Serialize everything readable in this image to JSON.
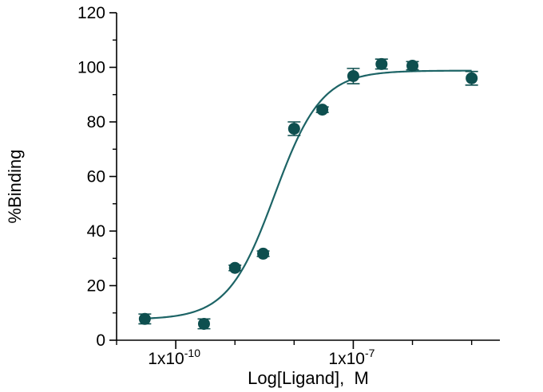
{
  "chart_data": {
    "type": "scatter",
    "xlabel": "Log[Ligand],  M",
    "ylabel": "%Binding",
    "x_scale": "log",
    "xlim": [
      1e-11,
      3e-05
    ],
    "ylim": [
      0,
      120
    ],
    "y_ticks": [
      0,
      20,
      40,
      60,
      80,
      100,
      120
    ],
    "x_major_ticks": [
      {
        "value": 1e-10,
        "label": "1x10",
        "exponent": "-10"
      },
      {
        "value": 1e-07,
        "label": "1x10",
        "exponent": "-7"
      }
    ],
    "x_minor_ticks": [
      1e-11,
      1e-09,
      1e-08,
      1e-06,
      1e-05
    ],
    "grid": false,
    "marker_color": "#0e4f4f",
    "curve_color": "#1d6466",
    "points": [
      {
        "x": 3e-11,
        "y": 7.8,
        "err": 1.8
      },
      {
        "x": 3e-10,
        "y": 6.0,
        "err": 1.8
      },
      {
        "x": 1e-09,
        "y": 26.5,
        "err": 1.0
      },
      {
        "x": 3e-09,
        "y": 31.7,
        "err": 1.0
      },
      {
        "x": 1e-08,
        "y": 77.5,
        "err": 2.5
      },
      {
        "x": 3e-08,
        "y": 84.5,
        "err": 1.0
      },
      {
        "x": 1e-07,
        "y": 96.8,
        "err": 2.8
      },
      {
        "x": 3e-07,
        "y": 101.2,
        "err": 1.8
      },
      {
        "x": 1e-06,
        "y": 100.6,
        "err": 1.5
      },
      {
        "x": 1e-05,
        "y": 96.0,
        "err": 2.5
      }
    ],
    "fit_curve": {
      "model": "four-parameter logistic",
      "bottom": 7.6,
      "top": 98.8,
      "log_ec50": -8.33,
      "hill_slope": 1.1,
      "x_range": [
        3e-11,
        1e-05
      ]
    }
  }
}
